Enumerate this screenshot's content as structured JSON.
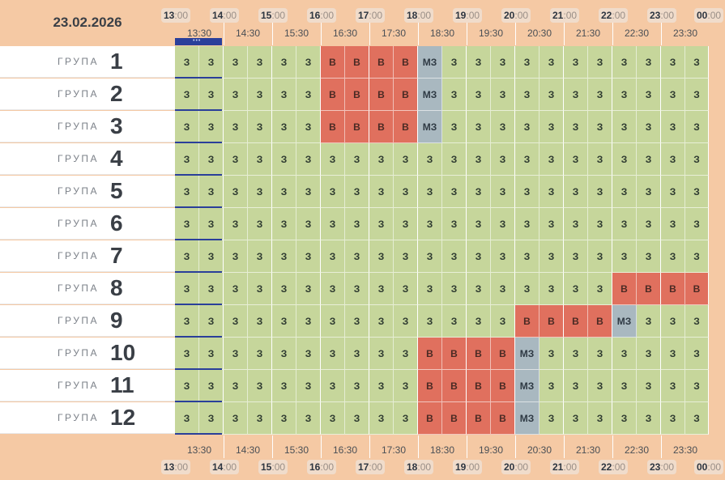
{
  "date": "23.02.2026",
  "hours": [
    {
      "h": "13",
      "m": ":00"
    },
    {
      "h": "14",
      "m": ":00"
    },
    {
      "h": "15",
      "m": ":00"
    },
    {
      "h": "16",
      "m": ":00"
    },
    {
      "h": "17",
      "m": ":00"
    },
    {
      "h": "18",
      "m": ":00"
    },
    {
      "h": "19",
      "m": ":00"
    },
    {
      "h": "20",
      "m": ":00"
    },
    {
      "h": "21",
      "m": ":00"
    },
    {
      "h": "22",
      "m": ":00"
    },
    {
      "h": "23",
      "m": ":00"
    },
    {
      "h": "00",
      "m": ":00"
    }
  ],
  "half_hours": [
    "13:30",
    "14:30",
    "15:30",
    "16:30",
    "17:30",
    "18:30",
    "19:30",
    "20:30",
    "21:30",
    "22:30",
    "23:30"
  ],
  "group_word": "ГРУПА",
  "status_colors": {
    "З": "#c6d69b",
    "В": "#e0705e",
    "МЗ": "#a9b8c0"
  },
  "now_marker": "•••",
  "groups": [
    {
      "number": "1",
      "slots": [
        "З",
        "З",
        "З",
        "З",
        "З",
        "З",
        "В",
        "В",
        "В",
        "В",
        "МЗ",
        "З",
        "З",
        "З",
        "З",
        "З",
        "З",
        "З",
        "З",
        "З",
        "З",
        "З"
      ]
    },
    {
      "number": "2",
      "slots": [
        "З",
        "З",
        "З",
        "З",
        "З",
        "З",
        "В",
        "В",
        "В",
        "В",
        "МЗ",
        "З",
        "З",
        "З",
        "З",
        "З",
        "З",
        "З",
        "З",
        "З",
        "З",
        "З"
      ]
    },
    {
      "number": "3",
      "slots": [
        "З",
        "З",
        "З",
        "З",
        "З",
        "З",
        "В",
        "В",
        "В",
        "В",
        "МЗ",
        "З",
        "З",
        "З",
        "З",
        "З",
        "З",
        "З",
        "З",
        "З",
        "З",
        "З"
      ]
    },
    {
      "number": "4",
      "slots": [
        "З",
        "З",
        "З",
        "З",
        "З",
        "З",
        "З",
        "З",
        "З",
        "З",
        "З",
        "З",
        "З",
        "З",
        "З",
        "З",
        "З",
        "З",
        "З",
        "З",
        "З",
        "З"
      ]
    },
    {
      "number": "5",
      "slots": [
        "З",
        "З",
        "З",
        "З",
        "З",
        "З",
        "З",
        "З",
        "З",
        "З",
        "З",
        "З",
        "З",
        "З",
        "З",
        "З",
        "З",
        "З",
        "З",
        "З",
        "З",
        "З"
      ]
    },
    {
      "number": "6",
      "slots": [
        "З",
        "З",
        "З",
        "З",
        "З",
        "З",
        "З",
        "З",
        "З",
        "З",
        "З",
        "З",
        "З",
        "З",
        "З",
        "З",
        "З",
        "З",
        "З",
        "З",
        "З",
        "З"
      ]
    },
    {
      "number": "7",
      "slots": [
        "З",
        "З",
        "З",
        "З",
        "З",
        "З",
        "З",
        "З",
        "З",
        "З",
        "З",
        "З",
        "З",
        "З",
        "З",
        "З",
        "З",
        "З",
        "З",
        "З",
        "З",
        "З"
      ]
    },
    {
      "number": "8",
      "slots": [
        "З",
        "З",
        "З",
        "З",
        "З",
        "З",
        "З",
        "З",
        "З",
        "З",
        "З",
        "З",
        "З",
        "З",
        "З",
        "З",
        "З",
        "З",
        "В",
        "В",
        "В",
        "В"
      ]
    },
    {
      "number": "9",
      "slots": [
        "З",
        "З",
        "З",
        "З",
        "З",
        "З",
        "З",
        "З",
        "З",
        "З",
        "З",
        "З",
        "З",
        "З",
        "В",
        "В",
        "В",
        "В",
        "МЗ",
        "З",
        "З",
        "З"
      ]
    },
    {
      "number": "10",
      "slots": [
        "З",
        "З",
        "З",
        "З",
        "З",
        "З",
        "З",
        "З",
        "З",
        "З",
        "В",
        "В",
        "В",
        "В",
        "МЗ",
        "З",
        "З",
        "З",
        "З",
        "З",
        "З",
        "З"
      ]
    },
    {
      "number": "11",
      "slots": [
        "З",
        "З",
        "З",
        "З",
        "З",
        "З",
        "З",
        "З",
        "З",
        "З",
        "В",
        "В",
        "В",
        "В",
        "МЗ",
        "З",
        "З",
        "З",
        "З",
        "З",
        "З",
        "З"
      ]
    },
    {
      "number": "12",
      "slots": [
        "З",
        "З",
        "З",
        "З",
        "З",
        "З",
        "З",
        "З",
        "З",
        "З",
        "В",
        "В",
        "В",
        "В",
        "МЗ",
        "З",
        "З",
        "З",
        "З",
        "З",
        "З",
        "З"
      ]
    }
  ]
}
